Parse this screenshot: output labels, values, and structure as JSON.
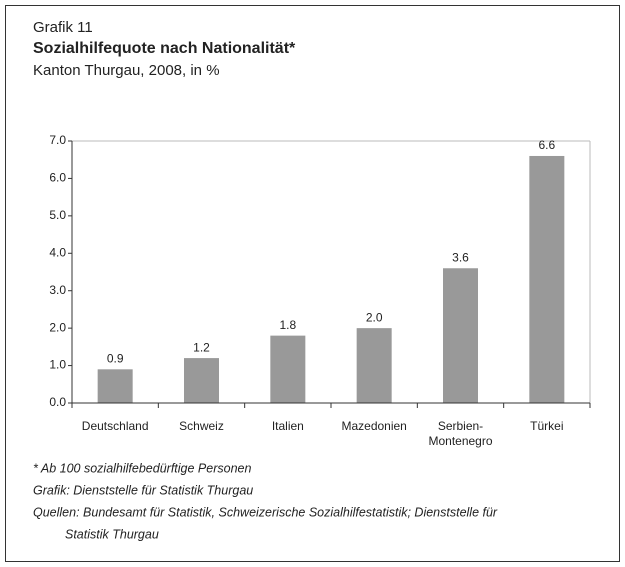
{
  "chart_data": {
    "type": "bar",
    "kicker": "Grafik 11",
    "title": "Sozialhilfequote nach Nationalität*",
    "subtitle": "Kanton Thurgau, 2008, in %",
    "categories": [
      "Deutschland",
      "Schweiz",
      "Italien",
      "Mazedonien",
      "Serbien-\nMontenegro",
      "Türkei"
    ],
    "values": [
      0.9,
      1.2,
      1.8,
      2.0,
      3.6,
      6.6
    ],
    "value_labels": [
      "0.9",
      "1.2",
      "1.8",
      "2.0",
      "3.6",
      "6.6"
    ],
    "color": "#999999",
    "ylim": [
      0,
      7
    ],
    "yticks": [
      {
        "value": 0,
        "label": "0.0"
      },
      {
        "value": 1,
        "label": "1.0"
      },
      {
        "value": 2,
        "label": "2.0"
      },
      {
        "value": 3,
        "label": "3.0"
      },
      {
        "value": 4,
        "label": "4.0"
      },
      {
        "value": 5,
        "label": "5.0"
      },
      {
        "value": 6,
        "label": "6.0"
      },
      {
        "value": 7,
        "label": "7.0"
      }
    ],
    "grid": false,
    "notes": [
      "* Ab 100 sozialhilfebedürftige Personen",
      "Grafik: Dienststelle für Statistik Thurgau",
      "Quellen: Bundesamt für Statistik, Schweizerische Sozialhilfestatistik; Dienststelle für",
      "Statistik Thurgau"
    ]
  }
}
